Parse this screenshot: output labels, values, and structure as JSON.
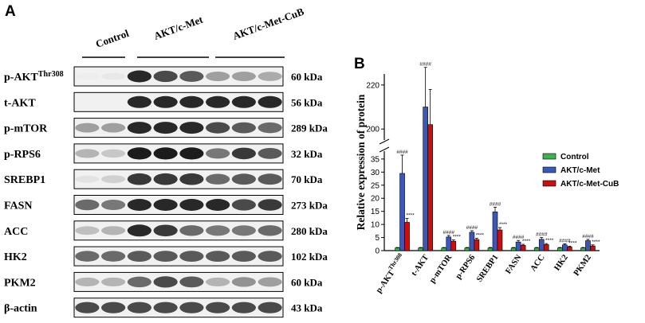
{
  "panel_a": {
    "letter": "A",
    "groups": [
      "Control",
      "AKT/c-Met",
      "AKT/c-Met-CuB"
    ],
    "blots": [
      {
        "protein": "p-AKT",
        "superscript": "Thr308",
        "kda": "60 kDa",
        "bands": [
          0.04,
          0.1,
          0.95,
          0.85,
          0.8,
          0.55,
          0.55,
          0.5
        ]
      },
      {
        "protein": "t-AKT",
        "superscript": "",
        "kda": "56 kDa",
        "bands": [
          0.0,
          0.0,
          0.95,
          0.95,
          0.95,
          0.95,
          0.95,
          0.95
        ]
      },
      {
        "protein": "p-mTOR",
        "superscript": "",
        "kda": "289 kDa",
        "bands": [
          0.55,
          0.55,
          0.95,
          0.95,
          0.95,
          0.85,
          0.8,
          0.75
        ]
      },
      {
        "protein": "p-RPS6",
        "superscript": "",
        "kda": "32 kDa",
        "bands": [
          0.45,
          0.35,
          0.98,
          0.98,
          0.98,
          0.7,
          0.9,
          0.8
        ]
      },
      {
        "protein": "SREBP1",
        "superscript": "",
        "kda": "70 kDa",
        "bands": [
          0.15,
          0.3,
          0.9,
          0.9,
          0.9,
          0.75,
          0.8,
          0.8
        ]
      },
      {
        "protein": "FASN",
        "superscript": "",
        "kda": "273 kDa",
        "bands": [
          0.75,
          0.7,
          0.95,
          0.95,
          0.95,
          0.95,
          0.85,
          0.9
        ]
      },
      {
        "protein": "ACC",
        "superscript": "",
        "kda": "280 kDa",
        "bands": [
          0.4,
          0.45,
          0.95,
          0.9,
          0.75,
          0.7,
          0.7,
          0.75
        ]
      },
      {
        "protein": "HK2",
        "superscript": "",
        "kda": "102 kDa",
        "bands": [
          0.75,
          0.75,
          0.8,
          0.8,
          0.8,
          0.8,
          0.8,
          0.8
        ]
      },
      {
        "protein": "PKM2",
        "superscript": "",
        "kda": "60 kDa",
        "bands": [
          0.45,
          0.45,
          0.75,
          0.85,
          0.8,
          0.45,
          0.6,
          0.55
        ]
      },
      {
        "protein": "β-actin",
        "superscript": "",
        "kda": "43 kDa",
        "bands": [
          0.85,
          0.85,
          0.85,
          0.85,
          0.85,
          0.85,
          0.85,
          0.85
        ]
      }
    ]
  },
  "panel_b": {
    "letter": "B"
  },
  "chart_data": {
    "type": "bar",
    "ylabel": "Relative expression of protein",
    "y_axis_break": true,
    "lower_segment_ylim": [
      0,
      38
    ],
    "lower_segment_ticks": [
      "0",
      "5",
      "10",
      "15",
      "20",
      "25",
      "30",
      "35"
    ],
    "upper_segment_ylim": [
      195,
      225
    ],
    "upper_segment_ticks": [
      "200",
      "220"
    ],
    "categories": [
      {
        "label": "p-AKT",
        "superscript": "Thr308"
      },
      {
        "label": "t-AKT",
        "superscript": ""
      },
      {
        "label": "p-mTOR",
        "superscript": ""
      },
      {
        "label": "p-RPS6",
        "superscript": ""
      },
      {
        "label": "SREBP1",
        "superscript": ""
      },
      {
        "label": "FASN",
        "superscript": ""
      },
      {
        "label": "ACC",
        "superscript": ""
      },
      {
        "label": "HK2",
        "superscript": ""
      },
      {
        "label": "PKM2",
        "superscript": ""
      }
    ],
    "series": [
      {
        "name": "Control",
        "color": "#3cb44b",
        "values": [
          1,
          1,
          1,
          1,
          1,
          1,
          1,
          1,
          1
        ],
        "errors": [
          0.2,
          0.2,
          0.2,
          0.2,
          0.2,
          0.2,
          0.2,
          0.2,
          0.2
        ]
      },
      {
        "name": "AKT/c-Met",
        "color": "#3d57b8",
        "values": [
          29.5,
          210,
          5.2,
          7.0,
          14.8,
          3.3,
          4.3,
          2.2,
          3.8
        ],
        "errors": [
          7.0,
          18,
          0.6,
          0.6,
          1.8,
          0.6,
          0.7,
          0.4,
          0.5
        ]
      },
      {
        "name": "AKT/c-Met-CuB",
        "color": "#cc0e0e",
        "values": [
          10.8,
          202,
          3.6,
          4.2,
          7.9,
          2.0,
          2.3,
          1.4,
          1.8
        ],
        "errors": [
          1.5,
          16,
          0.5,
          0.5,
          0.9,
          0.4,
          0.4,
          0.3,
          0.4
        ]
      }
    ],
    "significance_akt": [
      "####",
      "####",
      "####",
      "####",
      "####",
      "####",
      "####",
      "####",
      "####"
    ],
    "significance_cub": [
      "****",
      "",
      "****",
      "****",
      "****",
      "****",
      "****",
      "****",
      "****"
    ],
    "legend_position": "right"
  }
}
